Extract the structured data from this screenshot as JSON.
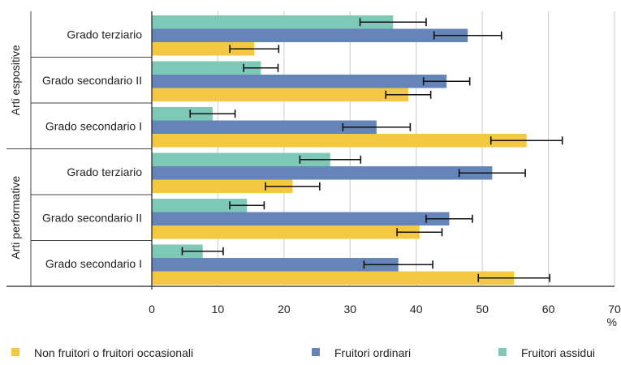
{
  "chart_data": {
    "type": "bar",
    "orientation": "horizontal",
    "xlim": [
      0,
      70
    ],
    "xticks": [
      0,
      10,
      20,
      30,
      40,
      50,
      60,
      70
    ],
    "x_unit": "%",
    "grid": "vertical",
    "legend_position": "bottom",
    "error_bars": true,
    "groups": [
      {
        "label": "Arti espositive",
        "categories": [
          {
            "label": "Grado terziario",
            "values": {
              "assidui": 36.5,
              "ordinari": 47.8,
              "non": 15.5
            },
            "errors": {
              "assidui": [
                31.5,
                41.5
              ],
              "ordinari": [
                42.7,
                52.9
              ],
              "non": [
                11.8,
                19.2
              ]
            }
          },
          {
            "label": "Grado secondario II",
            "values": {
              "assidui": 16.5,
              "ordinari": 44.6,
              "non": 38.8
            },
            "errors": {
              "assidui": [
                13.9,
                19.1
              ],
              "ordinari": [
                41.1,
                48.1
              ],
              "non": [
                35.4,
                42.2
              ]
            }
          },
          {
            "label": "Grado secondario I",
            "values": {
              "assidui": 9.2,
              "ordinari": 34.0,
              "non": 56.7
            },
            "errors": {
              "assidui": [
                5.8,
                12.6
              ],
              "ordinari": [
                28.9,
                39.1
              ],
              "non": [
                51.3,
                62.1
              ]
            }
          }
        ]
      },
      {
        "label": "Arti performative",
        "categories": [
          {
            "label": "Grado terziario",
            "values": {
              "assidui": 27.0,
              "ordinari": 51.5,
              "non": 21.3
            },
            "errors": {
              "assidui": [
                22.4,
                31.6
              ],
              "ordinari": [
                46.5,
                56.5
              ],
              "non": [
                17.2,
                25.4
              ]
            }
          },
          {
            "label": "Grado secondario II",
            "values": {
              "assidui": 14.4,
              "ordinari": 45.0,
              "non": 40.5
            },
            "errors": {
              "assidui": [
                11.8,
                17.0
              ],
              "ordinari": [
                41.5,
                48.5
              ],
              "non": [
                37.1,
                43.9
              ]
            }
          },
          {
            "label": "Grado secondario I",
            "values": {
              "assidui": 7.7,
              "ordinari": 37.3,
              "non": 54.8
            },
            "errors": {
              "assidui": [
                4.6,
                10.8
              ],
              "ordinari": [
                32.1,
                42.5
              ],
              "non": [
                49.4,
                60.2
              ]
            }
          }
        ]
      }
    ],
    "series": [
      {
        "key": "assidui",
        "name": "Fruitori assidui",
        "color": "#7dc8b6"
      },
      {
        "key": "ordinari",
        "name": "Fruitori ordinari",
        "color": "#6584b7"
      },
      {
        "key": "non",
        "name": "Non fruitori o fruitori occasionali",
        "color": "#f5c842"
      }
    ],
    "legend_order": [
      "non",
      "ordinari",
      "assidui"
    ],
    "colors": {
      "grid": "#cccccc",
      "axis": "#222222",
      "divider": "#444444",
      "error_bar": "#111111"
    }
  }
}
